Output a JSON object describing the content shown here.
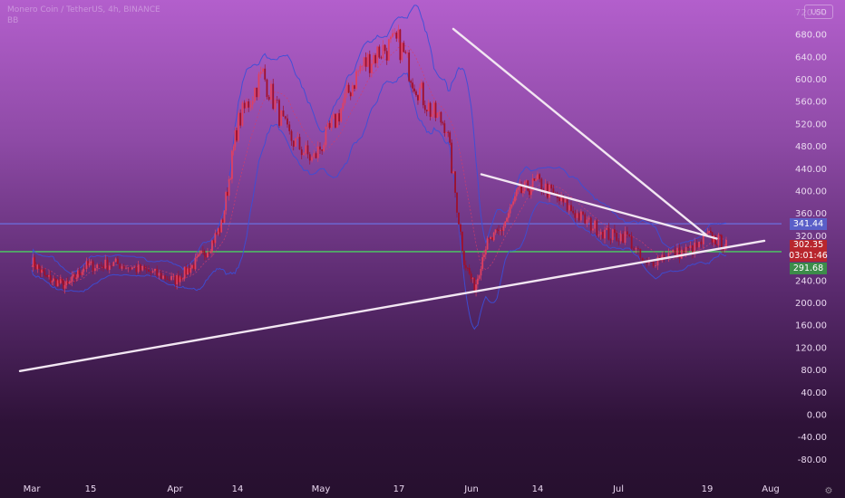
{
  "header": {
    "title": "Monero Coin / TetherUS, 4h, BINANCE",
    "subtitle": "BB"
  },
  "currency_button": "USD",
  "price_axis": {
    "tick_labels": [
      "-80.00",
      "-40.00",
      "0.00",
      "40.00",
      "80.00",
      "120.00",
      "160.00",
      "200.00",
      "240.00",
      "280.00",
      "320.00",
      "360.00",
      "400.00",
      "440.00",
      "480.00",
      "520.00",
      "560.00",
      "600.00",
      "640.00",
      "680.00",
      "720.00"
    ]
  },
  "price_tags": {
    "upper": "341.44",
    "last_price": "302.35",
    "countdown": "03:01:46",
    "lower": "291.68"
  },
  "time_axis": {
    "labels": [
      "Mar",
      "15",
      "Apr",
      "14",
      "May",
      "17",
      "Jun",
      "14",
      "Jul",
      "19",
      "Aug"
    ]
  },
  "colors": {
    "background_top": "#b35fcc",
    "background_bottom": "#26102e",
    "candles": "#c0203a",
    "bollinger_bands": "#3b4fd8",
    "trendlines": "#f2e6f2",
    "horizontal_upper": "#6a6fe0",
    "horizontal_lower": "#4ad060",
    "axis_text": "#ead8f0"
  },
  "chart_data": {
    "type": "line",
    "title": "Monero Coin / TetherUS, 4h, BINANCE",
    "indicator": "BB",
    "ylim": [
      -100,
      740
    ],
    "x_categories": [
      "Mar",
      "15",
      "Apr",
      "14",
      "May",
      "17",
      "Jun",
      "14",
      "Jul",
      "19",
      "Aug"
    ],
    "y_ticks": [
      -80,
      -40,
      0,
      40,
      80,
      120,
      160,
      200,
      240,
      280,
      320,
      360,
      400,
      440,
      480,
      520,
      560,
      600,
      640,
      680,
      720
    ],
    "price_path": {
      "x": [
        0,
        0.25,
        0.6,
        0.9,
        1.3,
        1.7,
        2.0,
        2.3,
        2.55,
        2.75,
        3.0,
        3.3,
        3.6,
        3.9,
        4.2,
        4.5,
        4.75,
        5.0,
        5.2,
        5.45,
        5.65,
        5.9,
        6.05,
        6.2,
        6.45,
        6.7,
        7.0,
        7.3,
        7.6,
        7.9,
        8.1,
        8.3,
        8.5,
        8.7,
        8.9,
        9.0,
        9.2,
        9.3
      ],
      "y": [
        275,
        245,
        230,
        265,
        270,
        255,
        240,
        268,
        300,
        340,
        520,
        610,
        500,
        455,
        530,
        620,
        650,
        665,
        600,
        540,
        520,
        275,
        225,
        300,
        330,
        395,
        415,
        380,
        345,
        320,
        320,
        265,
        285,
        290,
        300,
        320,
        310,
        302
      ]
    },
    "horizontal_levels": [
      341.44,
      291.68
    ],
    "last_price": 302.35,
    "trendlines": [
      {
        "name": "descending from May high",
        "x": [
          5.75,
          9.0
        ],
        "y": [
          690,
          320
        ]
      },
      {
        "name": "descending from June high",
        "x": [
          6.15,
          9.15
        ],
        "y": [
          430,
          315
        ]
      },
      {
        "name": "ascending support",
        "x": [
          -0.2,
          9.9
        ],
        "y": [
          78,
          311
        ]
      }
    ],
    "grid": false,
    "legend": "none"
  }
}
